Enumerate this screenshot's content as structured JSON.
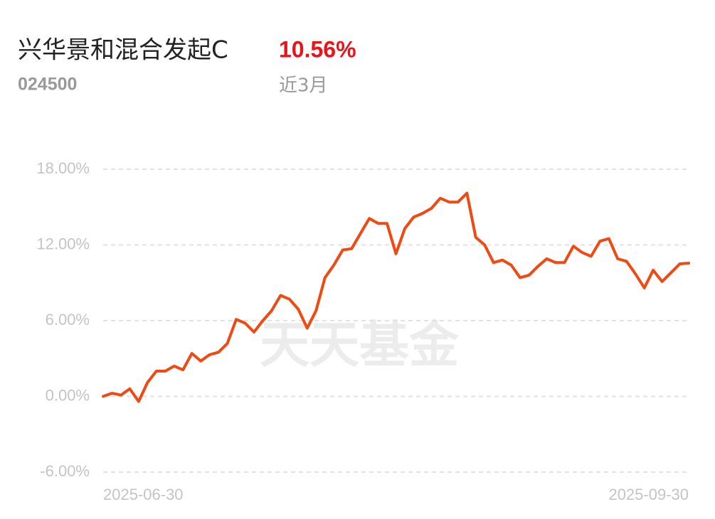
{
  "header": {
    "title": "兴华景和混合发起C",
    "return": "10.56%",
    "code": "024500",
    "period": "近3月",
    "watermark": "天天基金"
  },
  "chart_data": {
    "type": "line",
    "categories": [
      "2025-06-30",
      null,
      null,
      null,
      null,
      null,
      null,
      null,
      null,
      null,
      null,
      null,
      null,
      null,
      null,
      null,
      null,
      null,
      null,
      null,
      null,
      null,
      null,
      null,
      null,
      null,
      null,
      null,
      null,
      null,
      null,
      null,
      null,
      null,
      null,
      null,
      null,
      null,
      null,
      null,
      null,
      null,
      null,
      null,
      null,
      null,
      null,
      null,
      null,
      null,
      null,
      null,
      null,
      null,
      null,
      null,
      null,
      null,
      null,
      null,
      null,
      null,
      null,
      null,
      null,
      null,
      "2025-09-30"
    ],
    "values": [
      0,
      0.25,
      0.1,
      0.6,
      -0.4,
      1.1,
      2.0,
      2.0,
      2.4,
      2.1,
      3.4,
      2.8,
      3.3,
      3.5,
      4.2,
      6.1,
      5.8,
      5.1,
      6.0,
      6.8,
      8.0,
      7.7,
      6.9,
      5.4,
      6.8,
      9.4,
      10.4,
      11.6,
      11.7,
      12.9,
      14.1,
      13.7,
      13.7,
      11.3,
      13.3,
      14.2,
      14.5,
      14.9,
      15.7,
      15.4,
      15.4,
      16.1,
      12.6,
      12.0,
      10.6,
      10.8,
      10.4,
      9.4,
      9.6,
      10.3,
      10.9,
      10.6,
      10.6,
      11.9,
      11.4,
      11.1,
      12.3,
      12.5,
      10.9,
      10.7,
      9.7,
      8.6,
      10.0,
      9.1,
      9.8,
      10.5,
      10.56
    ],
    "color": "#f04a14",
    "ylim": [
      -6,
      18
    ],
    "yticks": [
      {
        "value": -6,
        "label": "-6.00%"
      },
      {
        "value": 0,
        "label": "0.00%"
      },
      {
        "value": 6,
        "label": "6.00%"
      },
      {
        "value": 12,
        "label": "12.00%"
      },
      {
        "value": 18,
        "label": "18.00%"
      }
    ],
    "grid": true
  }
}
